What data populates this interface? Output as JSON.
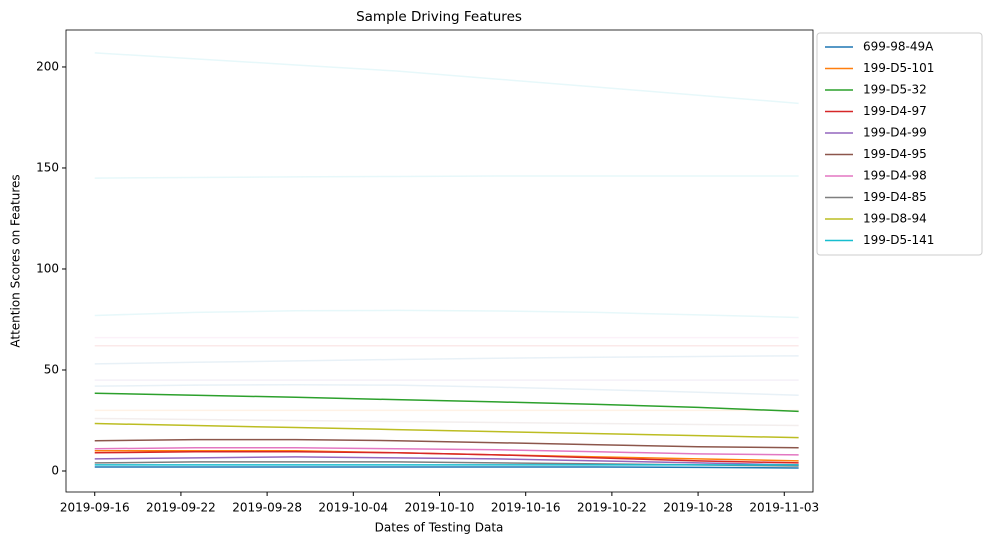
{
  "chart_data": {
    "type": "line",
    "title": "Sample Driving Features",
    "x_label": "Dates of Testing Data",
    "y_label": "Attention Scores on Features",
    "x": [
      "2019-09-16",
      "2019-09-23",
      "2019-09-30",
      "2019-10-07",
      "2019-10-14",
      "2019-10-21",
      "2019-10-28",
      "2019-11-04"
    ],
    "xlim": [
      "2019-09-14",
      "2019-11-05"
    ],
    "xticks": [
      "2019-09-16",
      "2019-09-22",
      "2019-09-28",
      "2019-10-04",
      "2019-10-10",
      "2019-10-16",
      "2019-10-22",
      "2019-10-28",
      "2019-11-03"
    ],
    "ylim": [
      -10.4,
      218.3
    ],
    "yticks": [
      0,
      50,
      100,
      150,
      200
    ],
    "legend": "outside-upper-right",
    "background_opacity": 0.1,
    "background_series": [
      {
        "color": "#17becf",
        "values": [
          207,
          204,
          201,
          198,
          194,
          190,
          186,
          182
        ]
      },
      {
        "color": "#17becf",
        "values": [
          145,
          145.3,
          145.6,
          145.8,
          146,
          146,
          146,
          146
        ]
      },
      {
        "color": "#17becf",
        "values": [
          77,
          78.5,
          79.3,
          79.5,
          79.2,
          78.5,
          77.3,
          76
        ]
      },
      {
        "color": "#e377c2",
        "values": [
          66,
          66,
          66,
          66,
          66,
          66,
          66,
          66
        ]
      },
      {
        "color": "#d62728",
        "values": [
          62,
          62,
          62,
          62,
          62,
          62,
          62,
          62
        ]
      },
      {
        "color": "#1f77b4",
        "values": [
          53,
          53.8,
          54.5,
          55.2,
          55.8,
          56.3,
          56.7,
          57
        ]
      },
      {
        "color": "#9467bd",
        "values": [
          45,
          45,
          45,
          45,
          45,
          45,
          45,
          45
        ]
      },
      {
        "color": "#1f77b4",
        "values": [
          42,
          42.5,
          42.7,
          42.5,
          41.5,
          40.3,
          39,
          37.5
        ]
      },
      {
        "color": "#ff7f0e",
        "values": [
          30,
          30,
          30,
          30,
          30,
          30,
          30,
          30
        ]
      },
      {
        "color": "#8c564b",
        "values": [
          26,
          25.5,
          25,
          24.5,
          24,
          23.5,
          23,
          22.5
        ]
      }
    ],
    "series": [
      {
        "name": "699-98-49A",
        "color": "#1f77b4",
        "values": [
          2,
          2,
          2,
          2,
          2,
          2,
          1.8,
          1.5
        ]
      },
      {
        "name": "199-D5-101",
        "color": "#ff7f0e",
        "values": [
          10,
          10,
          10,
          9,
          8,
          7,
          6,
          5
        ]
      },
      {
        "name": "199-D5-32",
        "color": "#2ca02c",
        "values": [
          38.5,
          37.5,
          36.5,
          35.3,
          34.2,
          33,
          31.5,
          29.5
        ]
      },
      {
        "name": "199-D4-97",
        "color": "#d62728",
        "values": [
          9,
          9.5,
          9.5,
          9,
          8,
          6.5,
          5,
          4
        ]
      },
      {
        "name": "199-D4-99",
        "color": "#9467bd",
        "values": [
          6,
          6.5,
          7,
          6.5,
          6,
          5,
          4,
          3
        ]
      },
      {
        "name": "199-D4-95",
        "color": "#8c564b",
        "values": [
          15,
          15.5,
          15.5,
          15,
          14,
          13,
          12,
          11.5
        ]
      },
      {
        "name": "199-D4-98",
        "color": "#e377c2",
        "values": [
          11,
          11.5,
          11.5,
          11,
          10.5,
          9.5,
          8.5,
          8
        ]
      },
      {
        "name": "199-D4-85",
        "color": "#7f7f7f",
        "values": [
          4,
          4.5,
          4.5,
          4.5,
          4,
          3.5,
          3,
          2.5
        ]
      },
      {
        "name": "199-D8-94",
        "color": "#bcbd22",
        "values": [
          23.5,
          22.5,
          21.5,
          20.5,
          19.5,
          18.5,
          17.5,
          16.5
        ]
      },
      {
        "name": "199-D5-141",
        "color": "#17becf",
        "values": [
          3,
          3,
          3,
          3,
          3,
          3,
          3,
          3
        ]
      }
    ]
  }
}
